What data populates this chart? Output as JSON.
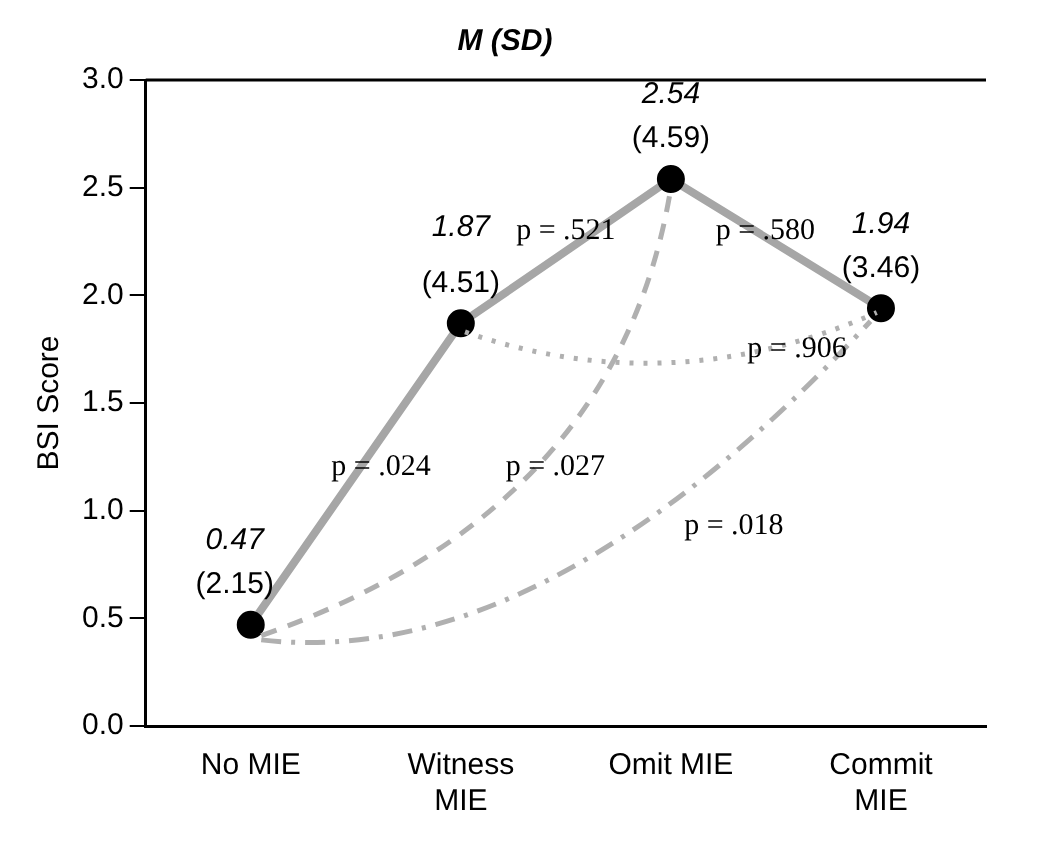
{
  "chart_data": {
    "type": "line",
    "title": "M (SD)",
    "ylabel": "BSI Score",
    "categories": [
      "No MIE",
      "Witness MIE",
      "Omit MIE",
      "Commit MIE"
    ],
    "series": [
      {
        "color": "#a6a6a6",
        "values": [
          0.47,
          1.87,
          2.54,
          1.94
        ]
      }
    ],
    "data_labels": true,
    "marker": "circle",
    "line_style": "solid",
    "grid": false,
    "legend": false,
    "ylim": [
      0,
      3
    ],
    "yticks": [
      {
        "value": 0,
        "label": "0.0"
      },
      {
        "value": 0.5,
        "label": "0.5"
      },
      {
        "value": 1,
        "label": "1.0"
      },
      {
        "value": 1.5,
        "label": "1.5"
      },
      {
        "value": 2,
        "label": "2.0"
      },
      {
        "value": 2.5,
        "label": "2.5"
      },
      {
        "value": 3,
        "label": "3.0"
      }
    ],
    "annotations": [
      {
        "text": "(2.15)",
        "x": "No MIE",
        "y": 0.47
      },
      {
        "text": "(4.51)",
        "x": "Witness MIE",
        "y": 1.87
      },
      {
        "text": "(4.59)",
        "x": "Omit MIE",
        "y": 2.54
      },
      {
        "text": "(3.46)",
        "x": "Commit MIE",
        "y": 1.94
      },
      "p = .024",
      "p = .521",
      "p = .580",
      "p = .906",
      "p = .027",
      "p = .018"
    ]
  }
}
